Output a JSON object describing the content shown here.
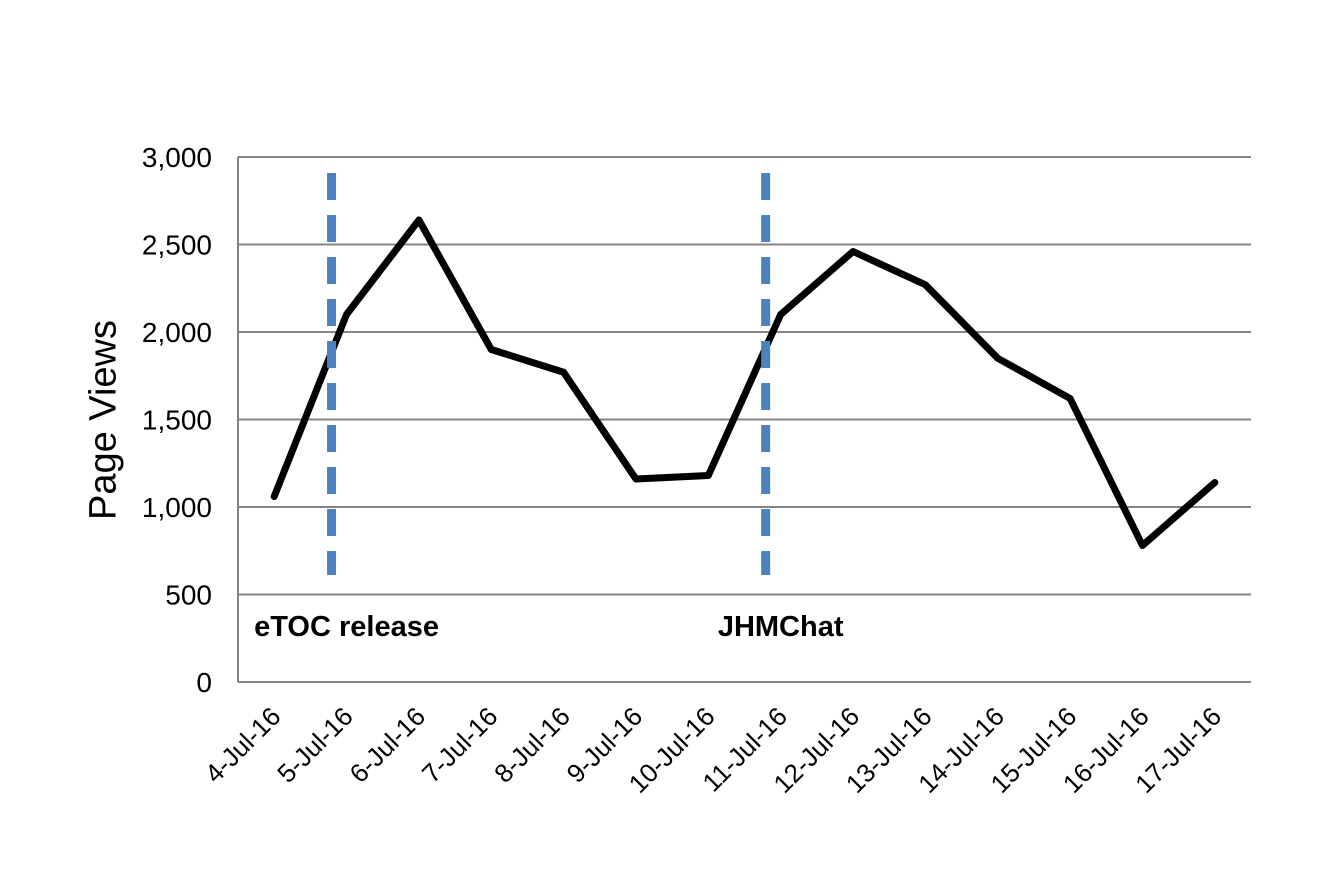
{
  "chart_data": {
    "type": "line",
    "title": "",
    "xlabel": "",
    "ylabel": "Page Views",
    "categories": [
      "4-Jul-16",
      "5-Jul-16",
      "6-Jul-16",
      "7-Jul-16",
      "8-Jul-16",
      "9-Jul-16",
      "10-Jul-16",
      "11-Jul-16",
      "12-Jul-16",
      "13-Jul-16",
      "14-Jul-16",
      "15-Jul-16",
      "16-Jul-16",
      "17-Jul-16"
    ],
    "series": [
      {
        "name": "Page Views",
        "values": [
          1060,
          2100,
          2640,
          1900,
          1770,
          1160,
          1180,
          2100,
          2460,
          2270,
          1850,
          1620,
          780,
          1140
        ]
      }
    ],
    "ylim": [
      0,
      3000
    ],
    "ytick_step": 500,
    "ytick_labels": [
      "0",
      "500",
      "1,000",
      "1,500",
      "2,000",
      "2,500",
      "3,000"
    ],
    "grid": "horizontal",
    "legend": "none",
    "annotations": [
      {
        "label": "eTOC release",
        "category": "5-Jul-16",
        "line_style": "dashed"
      },
      {
        "label": "JHMChat",
        "category": "11-Jul-16",
        "line_style": "dashed"
      }
    ],
    "colors": {
      "series_line": "#000000",
      "annotation_line": "#4F81BD",
      "gridline": "#848484",
      "text": "#000000"
    }
  }
}
